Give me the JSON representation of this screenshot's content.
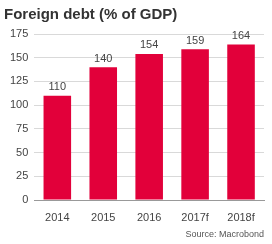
{
  "chart_data": {
    "type": "bar",
    "title": "Foreign debt (% of GDP)",
    "source": "Source: Macrobond",
    "categories": [
      "2014",
      "2015",
      "2016",
      "2017f",
      "2018f"
    ],
    "values": [
      110,
      140,
      154,
      159,
      164
    ],
    "color": "#e2003a",
    "ylim": [
      0,
      175
    ],
    "yticks": [
      0,
      25,
      50,
      75,
      100,
      125,
      150,
      175
    ],
    "grid": true,
    "data_labels": true
  }
}
